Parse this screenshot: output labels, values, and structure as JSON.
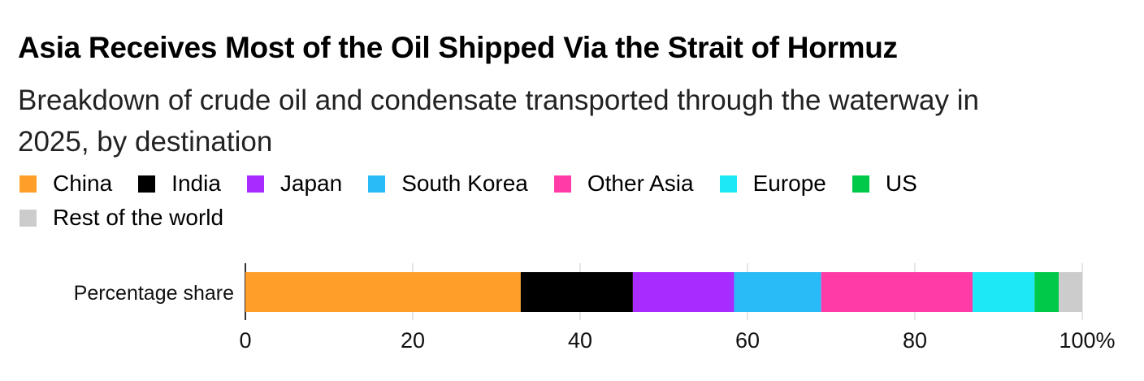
{
  "title": "Asia Receives Most of the Oil Shipped Via the Strait of Hormuz",
  "subtitle": "Breakdown of crude oil and condensate transported through the waterway in 2025, by destination",
  "chart_data": {
    "type": "bar",
    "orientation": "horizontal-stacked",
    "categories": [
      "Percentage share"
    ],
    "series": [
      {
        "name": "China",
        "values": [
          32.9
        ],
        "color": "#ff9f29"
      },
      {
        "name": "India",
        "values": [
          13.4
        ],
        "color": "#000000"
      },
      {
        "name": "Japan",
        "values": [
          12.1
        ],
        "color": "#a82bff"
      },
      {
        "name": "South Korea",
        "values": [
          10.4
        ],
        "color": "#29bbf7"
      },
      {
        "name": "Other Asia",
        "values": [
          18.1
        ],
        "color": "#ff3ba7"
      },
      {
        "name": "Europe",
        "values": [
          7.4
        ],
        "color": "#1de8f5"
      },
      {
        "name": "US",
        "values": [
          2.9
        ],
        "color": "#00c94a"
      },
      {
        "name": "Rest of the world",
        "values": [
          2.8
        ],
        "color": "#cccccc"
      }
    ],
    "xlim": [
      0,
      100
    ],
    "xticks": [
      "0",
      "20",
      "40",
      "60",
      "80",
      "100%"
    ],
    "grid": true,
    "legend": "top"
  }
}
